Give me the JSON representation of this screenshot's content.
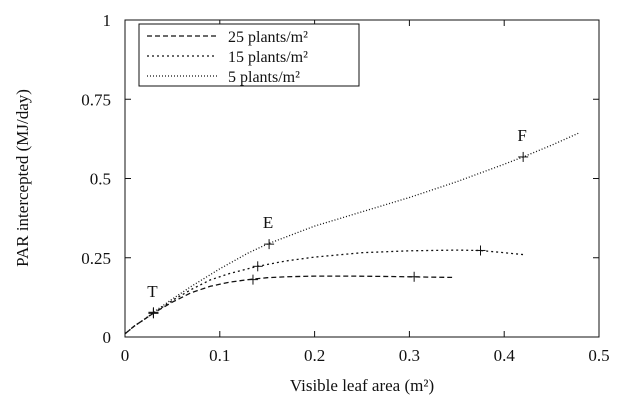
{
  "chart_data": {
    "type": "line",
    "xlabel": "Visible leaf area (m²)",
    "ylabel": "PAR intercepted (MJ/day)",
    "xlim": [
      0,
      0.5
    ],
    "ylim": [
      0,
      1
    ],
    "x_ticks": [
      0,
      0.1,
      0.2,
      0.3,
      0.4,
      0.5
    ],
    "x_tick_labels": [
      "0",
      "0.1",
      "0.2",
      "0.3",
      "0.4",
      "0.5"
    ],
    "y_ticks": [
      0,
      0.25,
      0.5,
      0.75,
      1
    ],
    "y_tick_labels": [
      "0",
      "0.25",
      "0.5",
      "0.75",
      "1"
    ],
    "grid": false,
    "legend_position": "top-left",
    "series": [
      {
        "name": "25 plants/m²",
        "dash": "dashed",
        "x": [
          0.0,
          0.01,
          0.02,
          0.03,
          0.05,
          0.07,
          0.09,
          0.11,
          0.13,
          0.15,
          0.17,
          0.2,
          0.24,
          0.28,
          0.3,
          0.32,
          0.345
        ],
        "y": [
          0.01,
          0.035,
          0.055,
          0.075,
          0.11,
          0.14,
          0.16,
          0.173,
          0.181,
          0.187,
          0.19,
          0.192,
          0.192,
          0.191,
          0.19,
          0.189,
          0.188
        ],
        "markers_x": [
          0.03,
          0.135,
          0.305
        ],
        "markers_y": [
          0.075,
          0.181,
          0.19
        ]
      },
      {
        "name": "15 plants/m²",
        "dash": "dotted",
        "x": [
          0.0,
          0.01,
          0.02,
          0.03,
          0.05,
          0.07,
          0.09,
          0.11,
          0.14,
          0.17,
          0.2,
          0.25,
          0.3,
          0.35,
          0.375,
          0.4,
          0.42
        ],
        "y": [
          0.01,
          0.035,
          0.055,
          0.075,
          0.115,
          0.15,
          0.18,
          0.2,
          0.223,
          0.24,
          0.252,
          0.266,
          0.272,
          0.274,
          0.273,
          0.266,
          0.26
        ],
        "markers_x": [
          0.03,
          0.14,
          0.375
        ],
        "markers_y": [
          0.075,
          0.223,
          0.273
        ]
      },
      {
        "name": "5 plants/m²",
        "dash": "fine-dotted",
        "x": [
          0.0,
          0.01,
          0.02,
          0.03,
          0.05,
          0.07,
          0.1,
          0.13,
          0.15,
          0.2,
          0.25,
          0.3,
          0.35,
          0.4,
          0.42,
          0.45,
          0.48
        ],
        "y": [
          0.01,
          0.035,
          0.055,
          0.078,
          0.12,
          0.16,
          0.215,
          0.265,
          0.293,
          0.35,
          0.395,
          0.44,
          0.49,
          0.545,
          0.568,
          0.605,
          0.645
        ],
        "markers_x": [
          0.03,
          0.152,
          0.42
        ],
        "markers_y": [
          0.078,
          0.293,
          0.568
        ]
      }
    ],
    "annotations": [
      {
        "text": "T",
        "x": 0.03,
        "y": 0.075
      },
      {
        "text": "E",
        "x": 0.152,
        "y": 0.293
      },
      {
        "text": "F",
        "x": 0.42,
        "y": 0.568
      }
    ]
  }
}
